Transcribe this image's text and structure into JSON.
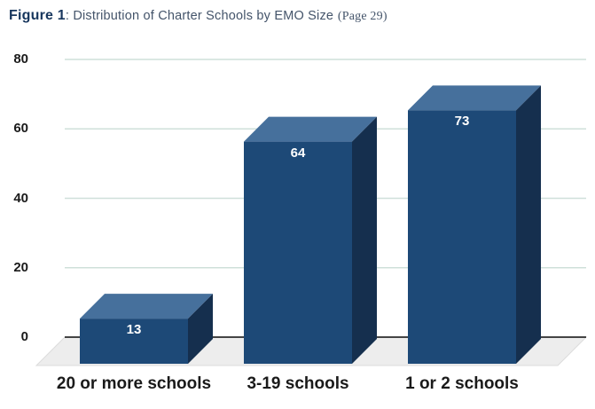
{
  "title": {
    "figure_label": "Figure 1",
    "separator": ": ",
    "text": "Distribution of Charter Schools by EMO Size",
    "page_ref": "(Page 29)"
  },
  "chart_data": {
    "type": "bar",
    "style": "3d-column",
    "title": "Distribution of Charter Schools by EMO Size (Page 29)",
    "categories": [
      "20 or more schools",
      "3-19 schools",
      "1 or 2 schools"
    ],
    "values": [
      13,
      64,
      73
    ],
    "value_labels": [
      "13",
      "64",
      "73"
    ],
    "xlabel": "",
    "ylabel": "",
    "ylim": [
      0,
      80
    ],
    "yticks": [
      0,
      20,
      40,
      60,
      80
    ],
    "ytick_labels": [
      "0",
      "20",
      "40",
      "60",
      "80"
    ],
    "grid": true,
    "legend": false,
    "colors": {
      "bar_front": "#1d4977",
      "bar_top": "#46709c",
      "bar_side": "#152f4e",
      "floor": "#ededed",
      "floor_edge": "#dcdcdc",
      "gridline": "#cfe0da",
      "axis_line": "#2b2b2b",
      "value_label": "#ffffff",
      "tick_label": "#1a1a1a",
      "category_label": "#1a1a1a"
    }
  }
}
